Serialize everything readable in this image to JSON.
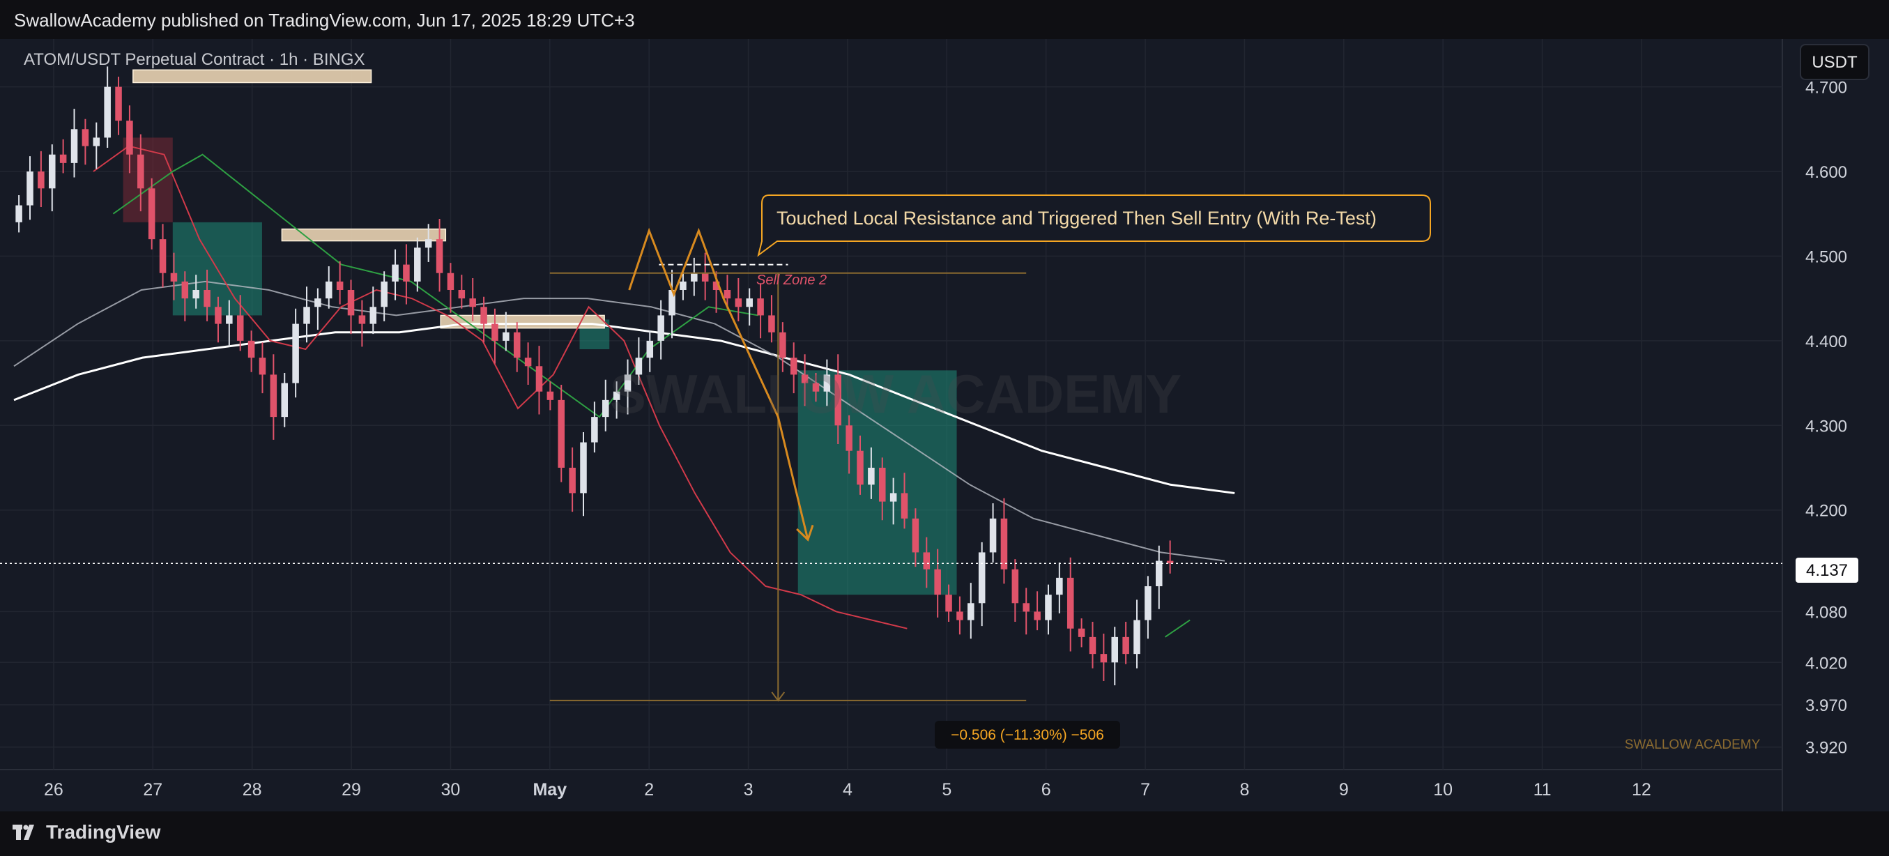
{
  "header": {
    "published_text": "SwallowAcademy published on TradingView.com, Jun 17, 2025 18:29 UTC+3"
  },
  "footer": {
    "brand": "TradingView"
  },
  "colors": {
    "background": "#161a25",
    "bull": "#dfe3ea",
    "bear": "#e0536a",
    "ema_white": "#ffffff",
    "ema_gray": "#b8bcc4",
    "ma_red": "#d23a4a",
    "ma_green": "#2ea043",
    "zone": "#e9d3b3",
    "annotation": "#f5a623"
  },
  "chart_data": {
    "type": "candlestick",
    "title": "ATOM/USDT Perpetual Contract · 1h · BINGX",
    "currency_button": "USDT",
    "current_price": "4.137",
    "y_ticks": [
      "4.700",
      "4.600",
      "4.500",
      "4.400",
      "4.300",
      "4.200",
      "4.080",
      "4.020",
      "3.970",
      "3.920"
    ],
    "x_ticks": [
      "26",
      "27",
      "28",
      "29",
      "30",
      "May",
      "2",
      "3",
      "4",
      "5",
      "6",
      "7",
      "8",
      "9",
      "10",
      "11",
      "12"
    ],
    "annotation": "Touched Local Resistance and Triggered Then Sell Entry (With Re-Test)",
    "sell_zone_label": "Sell Zone 2",
    "measure_label": "−0.506 (−11.30%) −506",
    "watermark_small": "SWALLOW ACADEMY",
    "watermark_big": "SWALLOW ACADEMY",
    "resistance_zones": [
      {
        "from_day": 26.8,
        "to_day": 29.2,
        "low": 4.705,
        "high": 4.72
      },
      {
        "from_day": 28.3,
        "to_day": 29.95,
        "low": 4.518,
        "high": 4.532
      },
      {
        "from_day": 29.9,
        "to_day": 31.55,
        "low": 4.415,
        "high": 4.43
      }
    ],
    "sell_zone_level": 4.49,
    "measure": {
      "day": 33.3,
      "top": 4.48,
      "bottom": 3.975
    },
    "pattern_points": [
      [
        31.8,
        4.46
      ],
      [
        32.0,
        4.53
      ],
      [
        32.25,
        4.455
      ],
      [
        32.5,
        4.53
      ],
      [
        32.75,
        4.45
      ],
      [
        33.3,
        4.31
      ],
      [
        33.6,
        4.165
      ]
    ],
    "close_series": [
      4.56,
      4.6,
      4.58,
      4.62,
      4.61,
      4.65,
      4.63,
      4.64,
      4.7,
      4.66,
      4.62,
      4.58,
      4.52,
      4.48,
      4.47,
      4.45,
      4.46,
      4.44,
      4.42,
      4.43,
      4.4,
      4.38,
      4.36,
      4.31,
      4.35,
      4.42,
      4.44,
      4.45,
      4.47,
      4.46,
      4.43,
      4.42,
      4.44,
      4.47,
      4.49,
      4.47,
      4.51,
      4.52,
      4.48,
      4.46,
      4.45,
      4.44,
      4.42,
      4.4,
      4.41,
      4.38,
      4.37,
      4.34,
      4.33,
      4.25,
      4.22,
      4.28,
      4.31,
      4.33,
      4.34,
      4.36,
      4.38,
      4.4,
      4.43,
      4.46,
      4.47,
      4.48,
      4.47,
      4.46,
      4.45,
      4.44,
      4.45,
      4.43,
      4.41,
      4.38,
      4.36,
      4.35,
      4.34,
      4.36,
      4.3,
      4.27,
      4.23,
      4.25,
      4.21,
      4.22,
      4.19,
      4.15,
      4.13,
      4.1,
      4.08,
      4.07,
      4.09,
      4.15,
      4.19,
      4.13,
      4.09,
      4.08,
      4.07,
      4.1,
      4.12,
      4.06,
      4.05,
      4.03,
      4.02,
      4.05,
      4.03,
      4.07,
      4.11,
      4.14,
      4.137
    ],
    "moving_averages": [
      {
        "name": "",
        "color": "#ffffff",
        "values": [
          4.33,
          4.36,
          4.38,
          4.39,
          4.4,
          4.41,
          4.41,
          4.42,
          4.42,
          4.42,
          4.41,
          4.4,
          4.38,
          4.36,
          4.33,
          4.3,
          4.27,
          4.25,
          4.23,
          4.22
        ]
      },
      {
        "name": "",
        "color": "#b8bcc4",
        "values": [
          4.37,
          4.42,
          4.46,
          4.47,
          4.46,
          4.44,
          4.43,
          4.44,
          4.45,
          4.45,
          4.44,
          4.42,
          4.38,
          4.33,
          4.28,
          4.23,
          4.19,
          4.17,
          4.15,
          4.14
        ]
      },
      {
        "name": "",
        "color": "#d23a4a",
        "values": [
          4.6,
          4.63,
          4.62,
          4.52,
          4.45,
          4.4,
          4.39,
          4.44,
          4.46,
          4.45,
          4.43,
          4.4,
          4.32,
          4.36,
          4.44,
          4.4,
          4.3,
          4.22,
          4.15,
          4.11,
          4.1,
          4.08,
          4.07,
          4.06
        ]
      }
    ],
    "ylim": [
      3.9,
      4.74
    ],
    "xlim": [
      25.6,
      43.3
    ],
    "grid": true,
    "legend": "none"
  }
}
